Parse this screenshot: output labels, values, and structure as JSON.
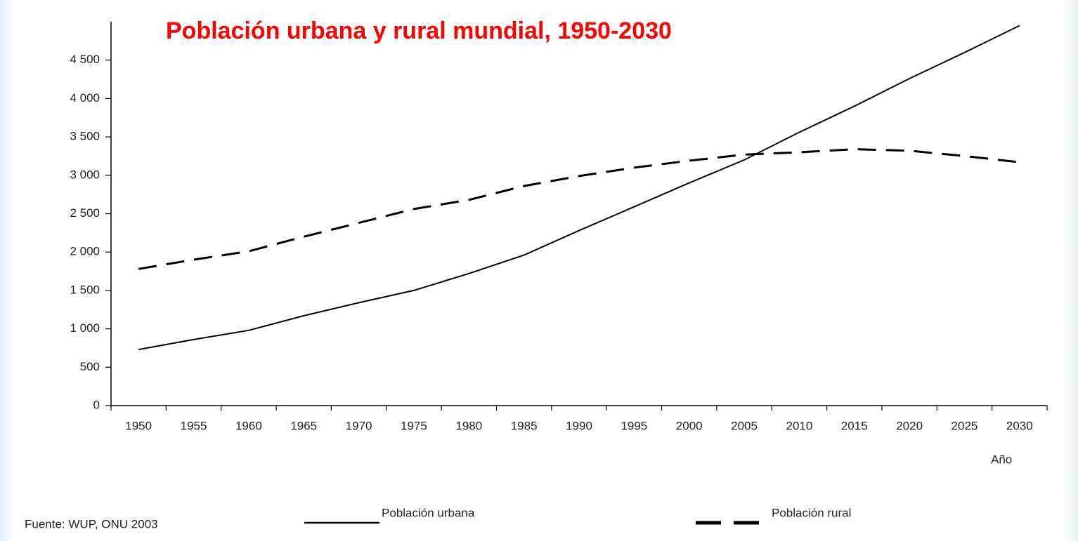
{
  "chart_data": {
    "type": "line",
    "title": "Población urbana y rural mundial, 1950-2030",
    "x_label": "Año",
    "source": "Fuente: WUP, ONU 2003",
    "categories": [
      "1950",
      "1955",
      "1960",
      "1965",
      "1970",
      "1975",
      "1980",
      "1985",
      "1990",
      "1995",
      "2000",
      "2005",
      "2010",
      "2015",
      "2020",
      "2025",
      "2030"
    ],
    "series": [
      {
        "name": "Población urbana",
        "color": "#000000",
        "dashed": false,
        "values": [
          730,
          860,
          980,
          1170,
          1340,
          1500,
          1720,
          1960,
          2280,
          2590,
          2900,
          3200,
          3560,
          3900,
          4260,
          4600,
          4950
        ]
      },
      {
        "name": "Población rural",
        "color": "#000000",
        "dashed": true,
        "values": [
          1780,
          1900,
          2010,
          2200,
          2380,
          2560,
          2680,
          2860,
          2990,
          3100,
          3190,
          3270,
          3300,
          3340,
          3320,
          3250,
          3170
        ]
      }
    ],
    "ylim": [
      0,
      5000
    ],
    "yticks": [
      0,
      500,
      {
        "value": 1000,
        "label": "1 000"
      },
      {
        "value": 1500,
        "label": "1 500"
      },
      {
        "value": 2000,
        "label": "2 000"
      },
      {
        "value": 2500,
        "label": "2 500"
      },
      {
        "value": 3000,
        "label": "3 000"
      },
      {
        "value": 3500,
        "label": "3 500"
      },
      {
        "value": 4000,
        "label": "4 000"
      },
      {
        "value": 4500,
        "label": "4 500"
      }
    ],
    "title_color": "#ff0000",
    "grid": false
  }
}
